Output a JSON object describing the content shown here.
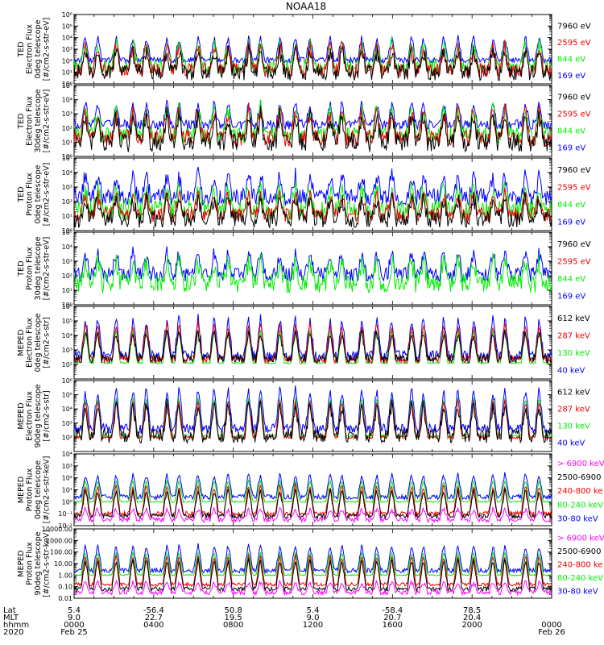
{
  "title": "NOAA18",
  "colors": {
    "c1": "#0000ff",
    "c2": "#00ee00",
    "c3": "#ee0000",
    "c4": "#000000",
    "c5": "#ff00ff"
  },
  "chart_data": [
    {
      "type": "line",
      "id": "p1",
      "scale": "log",
      "ylim": [
        1,
        1000000
      ],
      "ylabel": [
        "TED",
        "Electron Flux",
        "0deg telescope",
        "[#/cm2-s-str-eV]"
      ],
      "yticks": [
        {
          "v": 1,
          "t": "10⁰"
        },
        {
          "v": 10,
          "t": "10¹"
        },
        {
          "v": 100,
          "t": "10²"
        },
        {
          "v": 1000,
          "t": "10³"
        },
        {
          "v": 10000,
          "t": "10⁴"
        },
        {
          "v": 100000,
          "t": "10⁵"
        },
        {
          "v": 1000000,
          "t": "10⁶"
        }
      ],
      "legend": [
        {
          "label": "7960 eV",
          "color": "c4"
        },
        {
          "label": "2595 eV",
          "color": "c3"
        },
        {
          "label": "844 eV",
          "color": "c2"
        },
        {
          "label": "169 eV",
          "color": "c1"
        }
      ],
      "series": [
        {
          "name": "169 eV",
          "color": "c1",
          "base": 2,
          "peak": 4,
          "noise": 0.3,
          "band": [
            1.8,
            2.3
          ]
        },
        {
          "name": "844 eV",
          "color": "c2",
          "base": 1.5,
          "peak": 3.5,
          "noise": 0.6
        },
        {
          "name": "2595 eV",
          "color": "c3",
          "base": 1.2,
          "peak": 3.3,
          "noise": 0.6
        },
        {
          "name": "7960 eV",
          "color": "c4",
          "base": 1.0,
          "peak": 2.8,
          "noise": 0.7
        }
      ]
    },
    {
      "type": "line",
      "id": "p2",
      "scale": "log",
      "ylim": [
        1,
        100000
      ],
      "ylabel": [
        "TED",
        "Electron Flux",
        "30deg telescope",
        "[#/cm2-s-str-eV]"
      ],
      "yticks": [
        {
          "v": 1,
          "t": "10⁰"
        },
        {
          "v": 10,
          "t": "10¹"
        },
        {
          "v": 100,
          "t": "10²"
        },
        {
          "v": 1000,
          "t": "10³"
        },
        {
          "v": 10000,
          "t": "10⁴"
        },
        {
          "v": 100000,
          "t": "10⁵"
        }
      ],
      "legend": [
        {
          "label": "7960 eV",
          "color": "c4"
        },
        {
          "label": "2595 eV",
          "color": "c3"
        },
        {
          "label": "844 eV",
          "color": "c2"
        },
        {
          "label": "169 eV",
          "color": "c1"
        }
      ],
      "series": [
        {
          "name": "169 eV",
          "color": "c1",
          "base": 2,
          "peak": 3.8,
          "noise": 0.3,
          "band": [
            1.9,
            2.6
          ]
        },
        {
          "name": "844 eV",
          "color": "c2",
          "base": 1.5,
          "peak": 3.4,
          "noise": 0.6
        },
        {
          "name": "2595 eV",
          "color": "c3",
          "base": 1.3,
          "peak": 3.2,
          "noise": 0.6
        },
        {
          "name": "7960 eV",
          "color": "c4",
          "base": 1.0,
          "peak": 2.9,
          "noise": 0.7
        }
      ]
    },
    {
      "type": "line",
      "id": "p3",
      "scale": "log",
      "ylim": [
        1,
        100000
      ],
      "ylabel": [
        "TED",
        "Proton Flux",
        "0deg telescope",
        "[#/cm2-s-str-eV]"
      ],
      "yticks": [
        {
          "v": 1,
          "t": "10⁰"
        },
        {
          "v": 10,
          "t": "10¹"
        },
        {
          "v": 100,
          "t": "10²"
        },
        {
          "v": 1000,
          "t": "10³"
        },
        {
          "v": 10000,
          "t": "10⁴"
        },
        {
          "v": 100000,
          "t": "10⁵"
        }
      ],
      "legend": [
        {
          "label": "7960 eV",
          "color": "c4"
        },
        {
          "label": "2595 eV",
          "color": "c3"
        },
        {
          "label": "844 eV",
          "color": "c2"
        },
        {
          "label": "169 eV",
          "color": "c1"
        }
      ],
      "series": [
        {
          "name": "169 eV",
          "color": "c1",
          "base": 2.3,
          "peak": 3.8,
          "noise": 0.6
        },
        {
          "name": "844 eV",
          "color": "c2",
          "base": 1.4,
          "peak": 2.9,
          "noise": 0.7
        },
        {
          "name": "2595 eV",
          "color": "c3",
          "base": 1.1,
          "peak": 2.5,
          "noise": 0.5
        },
        {
          "name": "7960 eV",
          "color": "c4",
          "base": 0.8,
          "peak": 2.2,
          "noise": 0.6
        }
      ]
    },
    {
      "type": "line",
      "id": "p4",
      "scale": "log",
      "ylim": [
        1,
        100000
      ],
      "ylabel": [
        "TED",
        "Proton Flux",
        "30deg telescope",
        "[#/cm2-s-str-eV]"
      ],
      "yticks": [
        {
          "v": 1,
          "t": "10⁰"
        },
        {
          "v": 10,
          "t": "10¹"
        },
        {
          "v": 100,
          "t": "10²"
        },
        {
          "v": 1000,
          "t": "10³"
        },
        {
          "v": 10000,
          "t": "10⁴"
        },
        {
          "v": 100000,
          "t": "10⁵"
        }
      ],
      "legend": [
        {
          "label": "7960 eV",
          "color": "c4"
        },
        {
          "label": "2595 eV",
          "color": "c3"
        },
        {
          "label": "844 eV",
          "color": "c2"
        },
        {
          "label": "169 eV",
          "color": "c1"
        }
      ],
      "series": [
        {
          "name": "169 eV",
          "color": "c1",
          "base": 2.1,
          "peak": 3.6,
          "noise": 0.5
        },
        {
          "name": "844 eV",
          "color": "c2",
          "base": 1.5,
          "peak": 3.0,
          "noise": 0.7
        }
      ]
    },
    {
      "type": "line",
      "id": "p5",
      "scale": "log",
      "ylim": [
        10,
        1000000
      ],
      "ylabel": [
        "MEPED",
        "Electron Flux",
        "0deg telescope",
        "[#/cm2-s-str]"
      ],
      "yticks": [
        {
          "v": 100,
          "t": "10²"
        },
        {
          "v": 1000,
          "t": "10³"
        },
        {
          "v": 10000,
          "t": "10⁴"
        },
        {
          "v": 100000,
          "t": "10⁵"
        },
        {
          "v": 1000000,
          "t": "10⁶"
        }
      ],
      "legend": [
        {
          "label": "612 keV",
          "color": "c4"
        },
        {
          "label": "287 keV",
          "color": "c3"
        },
        {
          "label": "130 keV",
          "color": "c2"
        },
        {
          "label": "40 keV",
          "color": "c1"
        }
      ],
      "series": [
        {
          "name": "40 keV",
          "color": "c1",
          "base": 2.6,
          "peak": 5.2,
          "noise": 0.35
        },
        {
          "name": "130 keV",
          "color": "c2",
          "base": 2.1,
          "peak": 4.4,
          "noise": 0.05
        },
        {
          "name": "287 keV",
          "color": "c3",
          "base": 2.35,
          "peak": 4.8,
          "noise": 0.25
        },
        {
          "name": "612 keV",
          "color": "c4",
          "base": 2.4,
          "peak": 4.2,
          "noise": 0.3
        }
      ]
    },
    {
      "type": "line",
      "id": "p6",
      "scale": "log",
      "ylim": [
        10,
        1000000
      ],
      "ylabel": [
        "MEPED",
        "Electron Flux",
        "90deg telescope",
        "[#/cm2-s-str]"
      ],
      "yticks": [
        {
          "v": 100,
          "t": "10²"
        },
        {
          "v": 1000,
          "t": "10³"
        },
        {
          "v": 10000,
          "t": "10⁴"
        },
        {
          "v": 100000,
          "t": "10⁵"
        },
        {
          "v": 1000000,
          "t": "10⁶"
        }
      ],
      "legend": [
        {
          "label": "612 keV",
          "color": "c4"
        },
        {
          "label": "287 keV",
          "color": "c3"
        },
        {
          "label": "130 keV",
          "color": "c2"
        },
        {
          "label": "40 keV",
          "color": "c1"
        }
      ],
      "series": [
        {
          "name": "40 keV",
          "color": "c1",
          "base": 2.6,
          "peak": 5.4,
          "noise": 0.35
        },
        {
          "name": "130 keV",
          "color": "c2",
          "base": 2.1,
          "peak": 4.8,
          "noise": 0.1
        },
        {
          "name": "287 keV",
          "color": "c3",
          "base": 2.0,
          "peak": 4.6,
          "noise": 0.1
        },
        {
          "name": "612 keV",
          "color": "c4",
          "base": 2.1,
          "peak": 4.3,
          "noise": 0.5
        }
      ]
    },
    {
      "type": "line",
      "id": "p7",
      "scale": "log",
      "ylim": [
        0.01,
        10000
      ],
      "ylabel": [
        "MEPED",
        "Proton Flux",
        "0deg telescope",
        "[#/cm2-s-str-keV]"
      ],
      "yticks": [
        {
          "v": 0.01,
          "t": "10⁻²"
        },
        {
          "v": 0.1,
          "t": "10⁻¹"
        },
        {
          "v": 1,
          "t": "10⁰"
        },
        {
          "v": 10,
          "t": "10¹"
        },
        {
          "v": 100,
          "t": "10²"
        },
        {
          "v": 1000,
          "t": "10³"
        },
        {
          "v": 10000,
          "t": "10⁴"
        }
      ],
      "legend": [
        {
          "label": "> 6900 keV",
          "color": "c5"
        },
        {
          "label": "2500-6900",
          "color": "c4"
        },
        {
          "label": "240-800 ke",
          "color": "c3"
        },
        {
          "label": "80-240 keV",
          "color": "c2"
        },
        {
          "label": "30-80 keV",
          "color": "c1"
        }
      ],
      "series": [
        {
          "name": "30-80 keV",
          "color": "c1",
          "base": 0.4,
          "peak": 2.3,
          "noise": 0.2
        },
        {
          "name": "80-240 keV",
          "color": "c2",
          "base": 0.0,
          "peak": 1.8,
          "noise": 0.05
        },
        {
          "name": "240-800 ke",
          "color": "c3",
          "base": -1.0,
          "peak": 1.4,
          "noise": 0.2
        },
        {
          "name": "2500-6900",
          "color": "c4",
          "base": -1.2,
          "peak": 1.0,
          "noise": 0.2
        },
        {
          "name": "> 6900 keV",
          "color": "c5",
          "base": -1.5,
          "peak": -0.6,
          "noise": 0.2
        }
      ]
    },
    {
      "type": "line",
      "id": "p8",
      "scale": "log",
      "ylim": [
        0.01,
        10000
      ],
      "ylabel": [
        "MEPED",
        "Proton Flux",
        "90deg telescope",
        "[#/cm2-s-str-keV]"
      ],
      "yticks": [
        {
          "v": 0.01,
          "t": "0.01"
        },
        {
          "v": 0.1,
          "t": "0.10"
        },
        {
          "v": 1,
          "t": "1.00"
        },
        {
          "v": 10,
          "t": "10.00"
        },
        {
          "v": 100,
          "t": "100.00"
        },
        {
          "v": 1000,
          "t": "1000.00"
        },
        {
          "v": 10000,
          "t": "10000.00"
        }
      ],
      "legend": [
        {
          "label": "> 6900 keV",
          "color": "c5"
        },
        {
          "label": "2500-6900",
          "color": "c4"
        },
        {
          "label": "240-800 ke",
          "color": "c3"
        },
        {
          "label": "80-240 keV",
          "color": "c2"
        },
        {
          "label": "30-80 keV",
          "color": "c1"
        }
      ],
      "series": [
        {
          "name": "30-80 keV",
          "color": "c1",
          "base": 0.4,
          "peak": 2.6,
          "noise": 0.2
        },
        {
          "name": "80-240 keV",
          "color": "c2",
          "base": 0.0,
          "peak": 2.0,
          "noise": 0.05
        },
        {
          "name": "240-800 ke",
          "color": "c3",
          "base": -0.8,
          "peak": 1.7,
          "noise": 0.15
        },
        {
          "name": "2500-6900",
          "color": "c4",
          "base": -1.2,
          "peak": 1.3,
          "noise": 0.2
        },
        {
          "name": "> 6900 keV",
          "color": "c5",
          "base": -1.5,
          "peak": -0.6,
          "noise": 0.2
        }
      ]
    }
  ],
  "x_axis": {
    "range_hours": [
      0,
      24
    ],
    "row_labels": [
      "Lat",
      "MLT",
      "hhmm",
      "2020"
    ],
    "ticks": [
      {
        "hour": 0,
        "lat": "5.4",
        "mlt": "9.0",
        "hhmm": "0000",
        "date": "Feb 25"
      },
      {
        "hour": 4,
        "lat": "-56.4",
        "mlt": "22.7",
        "hhmm": "0400",
        "date": ""
      },
      {
        "hour": 8,
        "lat": "50.8",
        "mlt": "19.5",
        "hhmm": "0800",
        "date": ""
      },
      {
        "hour": 12,
        "lat": "5.4",
        "mlt": "9.0",
        "hhmm": "1200",
        "date": ""
      },
      {
        "hour": 16,
        "lat": "-58.4",
        "mlt": "20.7",
        "hhmm": "1600",
        "date": ""
      },
      {
        "hour": 20,
        "lat": "78.5",
        "mlt": "20.4",
        "hhmm": "2000",
        "date": ""
      },
      {
        "hour": 24,
        "lat": "",
        "mlt": "",
        "hhmm": "0000",
        "date": "Feb 26"
      }
    ]
  }
}
